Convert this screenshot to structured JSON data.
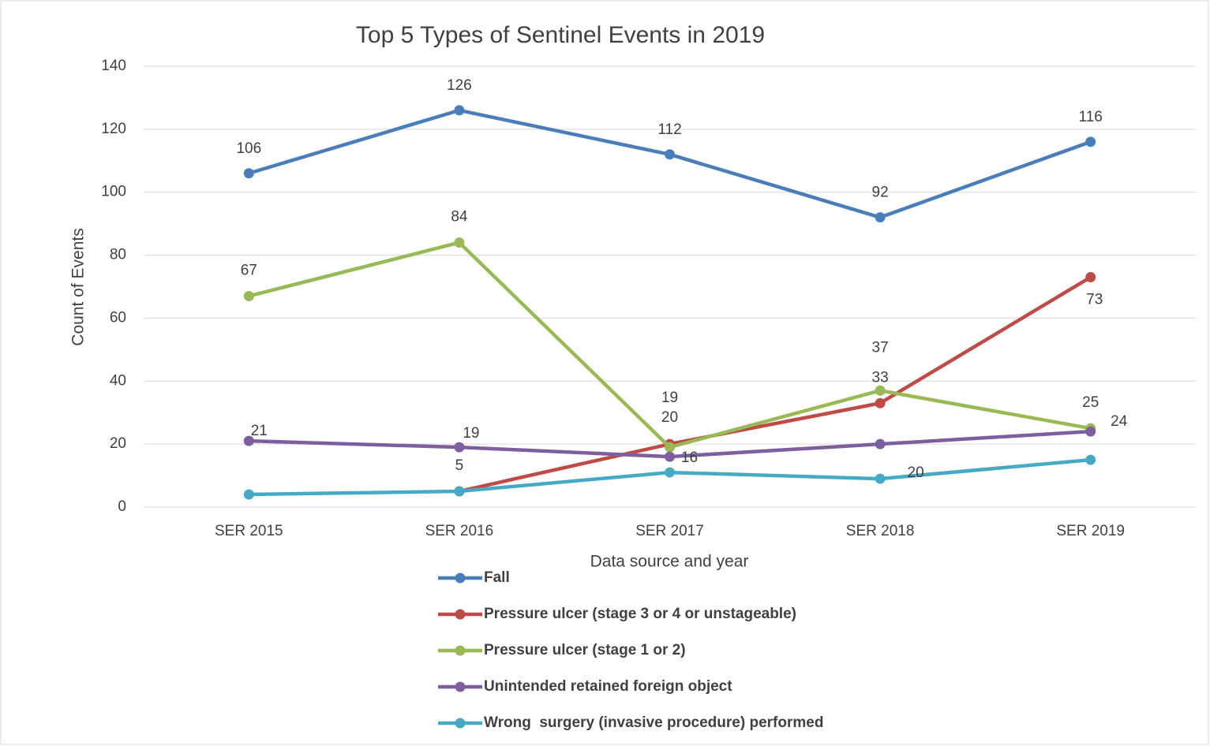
{
  "chart_data": {
    "type": "line",
    "title": "Top 5 Types of Sentinel Events in 2019",
    "x_label": "Data source and year",
    "y_label": "Count of Events",
    "categories": [
      "SER 2015",
      "SER 2016",
      "SER 2017",
      "SER 2018",
      "SER 2019"
    ],
    "series": [
      {
        "name": "Fall",
        "color": "#4a7ebb",
        "values": [
          106,
          126,
          112,
          92,
          116
        ],
        "data_labels": true
      },
      {
        "name": "Pressure ulcer (stage 3 or 4 or unstageable)",
        "color": "#be4b48",
        "values": [
          null,
          5,
          20,
          33,
          73
        ],
        "data_labels": true
      },
      {
        "name": "Pressure ulcer (stage 1 or 2)",
        "color": "#98b954",
        "values": [
          67,
          84,
          19,
          37,
          25
        ],
        "data_labels": true
      },
      {
        "name": "Unintended retained foreign object",
        "color": "#7d5fa0",
        "values": [
          21,
          19,
          16,
          20,
          24
        ],
        "data_labels": true
      },
      {
        "name": "Wrong  surgery (invasive procedure) performed",
        "color": "#46aac5",
        "values": [
          4,
          5,
          11,
          9,
          15
        ],
        "data_labels": false
      }
    ],
    "ylim": [
      0,
      140
    ],
    "yticks": [
      0,
      20,
      40,
      60,
      80,
      100,
      120,
      140
    ],
    "grid": true,
    "legend": "bottom"
  }
}
